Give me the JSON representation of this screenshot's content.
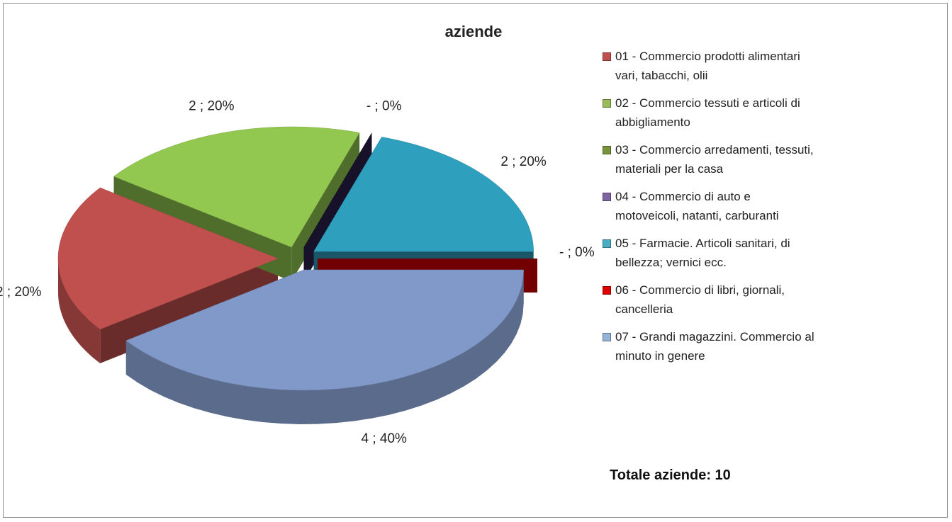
{
  "chart_data": {
    "type": "pie",
    "title": "aziende",
    "categories": [
      "01 - Commercio prodotti alimentari vari, tabacchi, olii",
      "02 - Commercio tessuti e articoli di abbigliamento",
      "03 - Commercio arredamenti, tessuti, materiali per la casa",
      "04 - Commercio di auto e motoveicoli, natanti, carburanti",
      "05 - Farmacie. Articoli sanitari, di bellezza; vernici ecc.",
      "06 - Commercio di libri, giornali, cancelleria",
      "07 - Grandi magazzini. Commercio al minuto in genere"
    ],
    "values": [
      2,
      2,
      0,
      0,
      2,
      0,
      4
    ],
    "value_labels": [
      "2 ; 20%",
      "2 ; 20%",
      null,
      "-   ; 0%",
      "2 ; 20%",
      "-   ; 0%",
      "4 ; 40%"
    ],
    "colors": [
      "#c0504d",
      "#92c84f",
      "#4f6228",
      "#2a1f4a",
      "#2e9fbd",
      "#d00000",
      "#8099c8"
    ],
    "legend_colors": [
      "#c0504d",
      "#9bbb59",
      "#77933c",
      "#8064a2",
      "#4bacc6",
      "#e00000",
      "#95b3d7"
    ],
    "note": "Totale aziende: 10"
  }
}
